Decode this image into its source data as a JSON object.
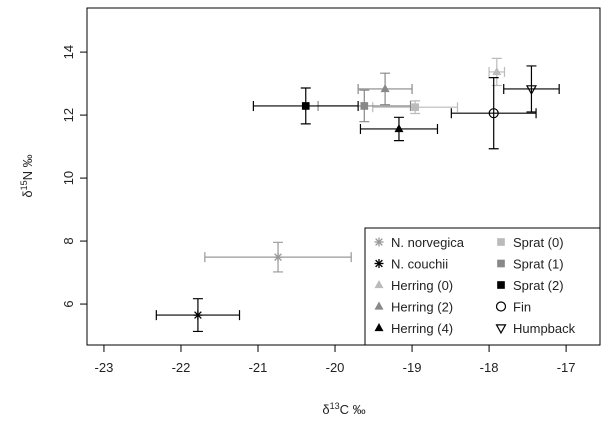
{
  "chart_data": {
    "type": "scatter",
    "xlabel": {
      "prefix": "δ",
      "sup": "13",
      "main": "C ‰"
    },
    "ylabel": {
      "prefix": "δ",
      "sup": "15",
      "main": "N ‰"
    },
    "xlim": [
      -23.22,
      -16.56
    ],
    "ylim": [
      4.7,
      15.4
    ],
    "xticks": [
      -23,
      -22,
      -21,
      -20,
      -19,
      -18,
      -17
    ],
    "yticks": [
      6,
      8,
      10,
      12,
      14
    ],
    "legend": "bottom-right",
    "series": [
      {
        "name": "N. norvegica",
        "color": "#999999",
        "marker": "asterisk",
        "x": -20.74,
        "y": 7.49,
        "xerr": 0.95,
        "yerr": 0.47
      },
      {
        "name": "N. couchii",
        "color": "#000000",
        "marker": "asterisk",
        "x": -21.78,
        "y": 5.65,
        "xerr": 0.54,
        "yerr": 0.52
      },
      {
        "name": "Herring (0)",
        "color": "#bbbbbb",
        "marker": "triangle",
        "x": -17.9,
        "y": 13.37,
        "xerr": 0.1,
        "yerr": 0.43
      },
      {
        "name": "Herring (2)",
        "color": "#888888",
        "marker": "triangle",
        "x": -19.35,
        "y": 12.83,
        "xerr": 0.35,
        "yerr": 0.5
      },
      {
        "name": "Herring (4)",
        "color": "#000000",
        "marker": "triangle",
        "x": -19.17,
        "y": 11.56,
        "xerr": 0.5,
        "yerr": 0.37
      },
      {
        "name": "Sprat (0)",
        "color": "#bbbbbb",
        "marker": "square",
        "x": -18.96,
        "y": 12.25,
        "xerr": 0.55,
        "yerr": 0.2
      },
      {
        "name": "Sprat (1)",
        "color": "#888888",
        "marker": "square",
        "x": -19.62,
        "y": 12.29,
        "xerr": 0.6,
        "yerr": 0.5
      },
      {
        "name": "Sprat (2)",
        "color": "#000000",
        "marker": "square",
        "x": -20.38,
        "y": 12.29,
        "xerr": 0.68,
        "yerr": 0.57
      },
      {
        "name": "Fin",
        "color": "#000000",
        "marker": "circle",
        "x": -17.94,
        "y": 12.06,
        "xerr": 0.55,
        "yerr": 1.13
      },
      {
        "name": "Humpback",
        "color": "#000000",
        "marker": "triangle-down",
        "x": -17.45,
        "y": 12.83,
        "xerr": 0.36,
        "yerr": 0.73
      }
    ]
  }
}
